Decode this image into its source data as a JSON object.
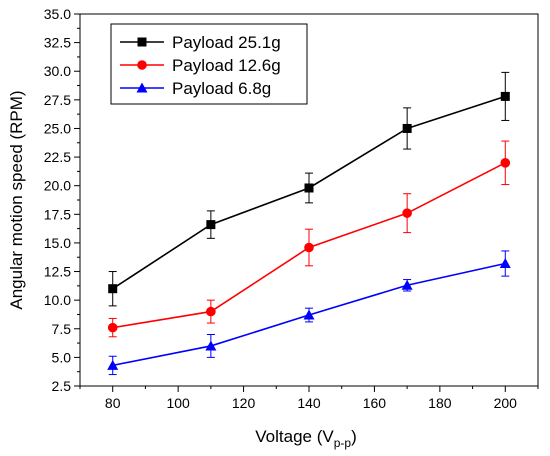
{
  "chart_data": {
    "type": "line",
    "title": "",
    "xlabel": "Voltage (V",
    "xlabel_subscript": "p-p",
    "xlabel_suffix": ")",
    "ylabel": "Angular motion speed (RPM)",
    "x": [
      80,
      110,
      140,
      170,
      200
    ],
    "xlim": [
      70,
      210
    ],
    "ylim": [
      2.5,
      35.0
    ],
    "xticks": [
      "80",
      "100",
      "120",
      "140",
      "160",
      "180",
      "200"
    ],
    "yticks": [
      "2.5",
      "5.0",
      "7.5",
      "10.0",
      "12.5",
      "15.0",
      "17.5",
      "20.0",
      "22.5",
      "25.0",
      "27.5",
      "30.0",
      "32.5",
      "35.0"
    ],
    "grid": false,
    "legend_position": "top-left",
    "series": [
      {
        "name": "Payload 25.1g",
        "color": "#000000",
        "marker": "square",
        "values": [
          11.0,
          16.6,
          19.8,
          25.0,
          27.8
        ],
        "errors": [
          1.5,
          1.2,
          1.3,
          1.8,
          2.1
        ]
      },
      {
        "name": "Payload 12.6g",
        "color": "#ff0000",
        "marker": "circle",
        "values": [
          7.6,
          9.0,
          14.6,
          17.6,
          22.0
        ],
        "errors": [
          0.8,
          1.0,
          1.6,
          1.7,
          1.9
        ]
      },
      {
        "name": "Payload 6.8g",
        "color": "#0000ff",
        "marker": "triangle",
        "values": [
          4.3,
          6.0,
          8.7,
          11.3,
          13.2
        ],
        "errors": [
          0.8,
          1.0,
          0.6,
          0.5,
          1.1
        ]
      }
    ]
  }
}
